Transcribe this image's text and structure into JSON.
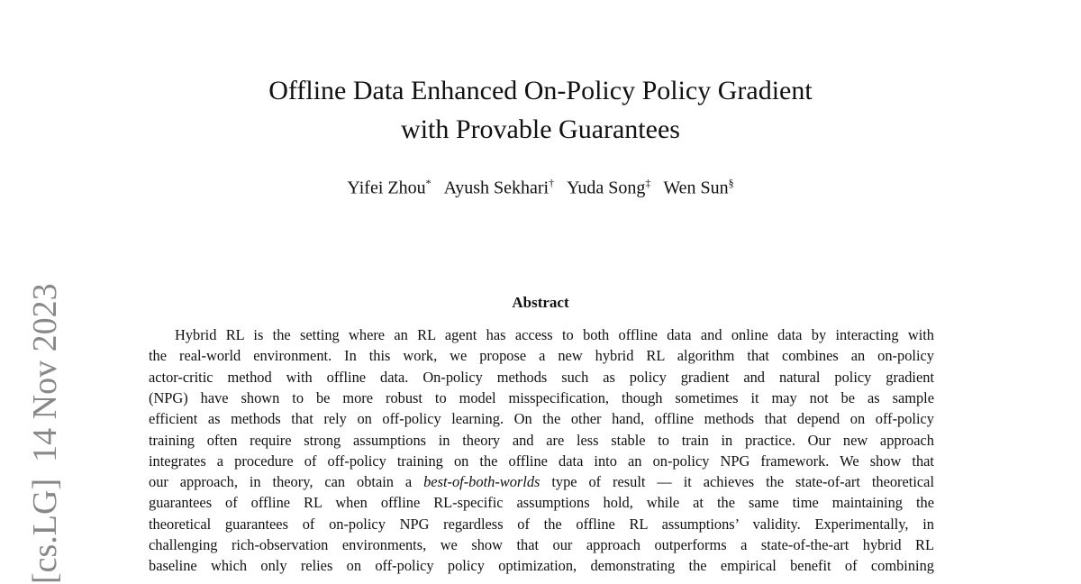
{
  "arxiv_stamp": {
    "category": "[cs.LG]",
    "date": "14 Nov 2023"
  },
  "header": {
    "title_lines": [
      "Offline Data Enhanced On-Policy Policy Gradient",
      "with Provable Guarantees"
    ],
    "authors": [
      {
        "name": "Yifei Zhou",
        "mark": "*"
      },
      {
        "name": "Ayush Sekhari",
        "mark": "†"
      },
      {
        "name": "Yuda Song",
        "mark": "‡"
      },
      {
        "name": "Wen Sun",
        "mark": "§"
      }
    ]
  },
  "abstract": {
    "heading": "Abstract",
    "lines": [
      "Hybrid RL is the setting where an RL agent has access to both offline data and online data by interacting with",
      "the real-world environment. In this work, we propose a new hybrid RL algorithm that combines an on-policy",
      "actor-critic method with offline data. On-policy methods such as policy gradient and natural policy gradient",
      "(NPG) have shown to be more robust to model misspecification, though sometimes it may not be as sample",
      "efficient as methods that rely on off-policy learning. On the other hand, offline methods that depend on off-policy",
      "training often require strong assumptions in theory and are less stable to train in practice. Our new approach",
      "integrates a procedure of off-policy training on the offline data into an on-policy NPG framework. We show that",
      {
        "before": "our approach, in theory, can obtain a ",
        "italic": "best-of-both-worlds",
        "after": " type of result — it achieves the state-of-art theoretical"
      },
      "guarantees of offline RL when offline RL-specific assumptions hold, while at the same time maintaining the",
      "theoretical guarantees of on-policy NPG regardless of the offline RL assumptions’ validity. Experimentally, in",
      "challenging rich-observation environments, we show that our approach outperforms a state-of-the-art hybrid RL",
      "baseline which only relies on off-policy policy optimization, demonstrating the empirical benefit of combining"
    ]
  }
}
